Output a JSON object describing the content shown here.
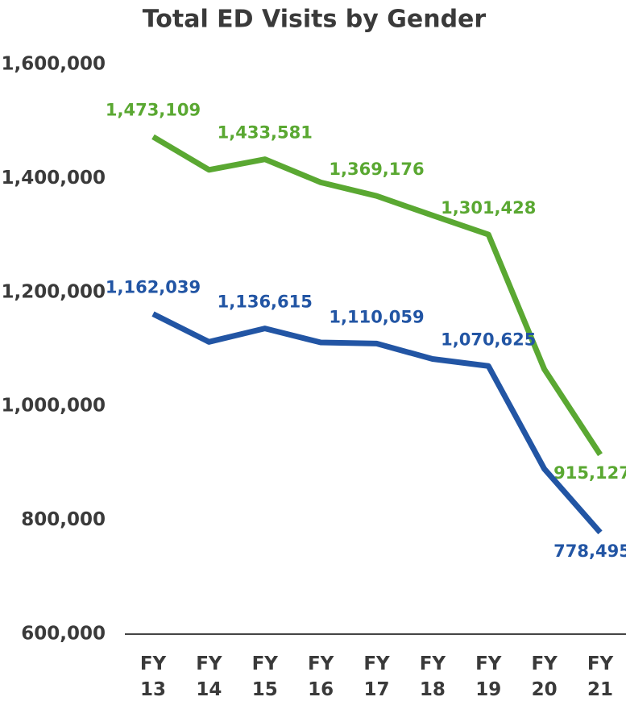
{
  "chart_data": {
    "type": "line",
    "title": "Total ED Visits by Gender",
    "categories": [
      "FY 13",
      "FY 14",
      "FY 15",
      "FY 16",
      "FY 17",
      "FY 18",
      "FY 19",
      "FY 20",
      "FY 21"
    ],
    "series": [
      {
        "color": "#5aa832",
        "values": [
          1473109,
          1415000,
          1433581,
          1393000,
          1369176,
          1335000,
          1301428,
          1065000,
          915127
        ],
        "value_labels": [
          "1,473,109",
          null,
          "1,433,581",
          null,
          "1,369,176",
          null,
          "1,301,428",
          null,
          "915,127"
        ]
      },
      {
        "color": "#2255a4",
        "values": [
          1162039,
          1113000,
          1136615,
          1112000,
          1110059,
          1083000,
          1070625,
          890000,
          778495
        ],
        "value_labels": [
          "1,162,039",
          null,
          "1,136,615",
          null,
          "1,110,059",
          null,
          "1,070,625",
          null,
          "778,495"
        ]
      }
    ],
    "ylim": [
      600000,
      1600000
    ],
    "yticks": [
      {
        "value": 600000,
        "label": "600,000"
      },
      {
        "value": 800000,
        "label": "800,000"
      },
      {
        "value": 1000000,
        "label": "1,000,000"
      },
      {
        "value": 1200000,
        "label": "1,200,000"
      },
      {
        "value": 1400000,
        "label": "1,400,000"
      },
      {
        "value": 1600000,
        "label": "1,600,000"
      }
    ],
    "grid": false
  }
}
